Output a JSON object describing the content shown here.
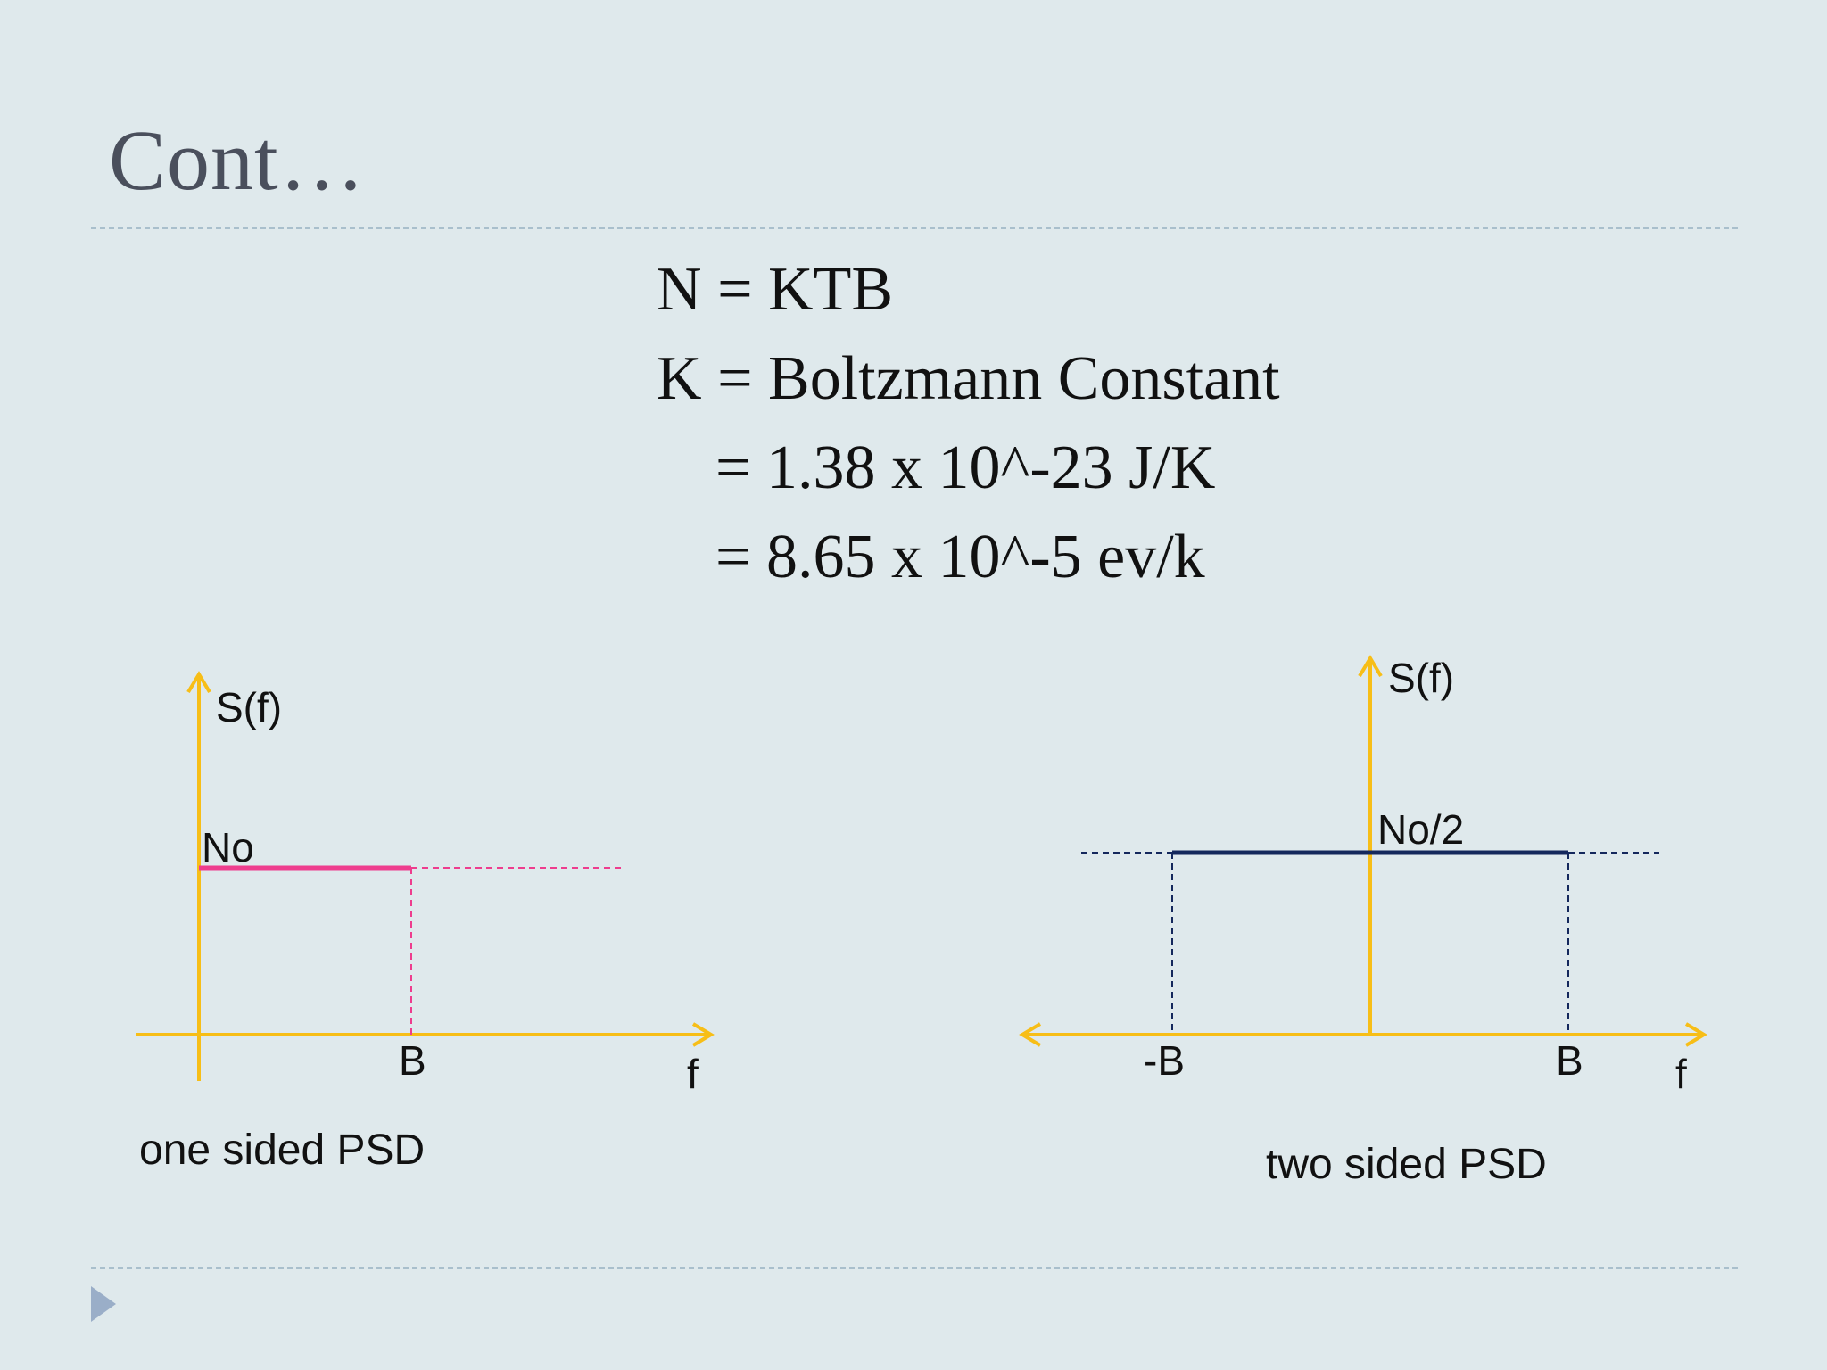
{
  "slide": {
    "title": "Cont…",
    "equations": [
      {
        "lhs": "N",
        "rhs": "= KTB"
      },
      {
        "lhs": "K",
        "rhs": "= Boltzmann Constant"
      },
      {
        "lhs": "",
        "rhs": "= 1.38 x 10^-23 J/K"
      },
      {
        "lhs": "",
        "rhs": "= 8.65 x 10^-5 ev/k"
      }
    ]
  },
  "diagram_left": {
    "y_label": "S(f)",
    "level_label": "No",
    "b_label": "B",
    "x_label": "f",
    "caption": "one sided PSD"
  },
  "diagram_right": {
    "y_label": "S(f)",
    "level_label": "No/2",
    "neg_b_label": "-B",
    "b_label": "B",
    "x_label": "f",
    "caption": "two sided PSD"
  },
  "colors": {
    "axis": "#f7be17",
    "one_sided_level": "#ee3d8e",
    "two_sided_level": "#14285c",
    "background": "#dfe9ec"
  }
}
